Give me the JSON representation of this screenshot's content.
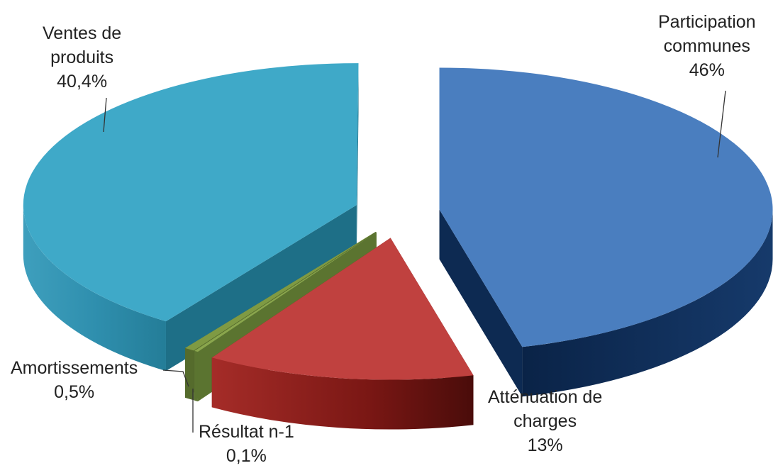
{
  "chart_data": {
    "type": "pie",
    "style": "3d-exploded",
    "slices": [
      {
        "name": "Participation communes",
        "value": 46,
        "label_lines": [
          "Participation",
          "communes",
          "46%"
        ],
        "color": "#4a7ebf",
        "side": "#0d2a52"
      },
      {
        "name": "Atténuation de charges",
        "value": 13,
        "label_lines": [
          "Atténuation de",
          "charges",
          "13%"
        ],
        "color": "#c0413f",
        "side": "#6f1714"
      },
      {
        "name": "Résultat n-1",
        "value": 0.1,
        "label_lines": [
          "Résultat n-1",
          "0,1%"
        ],
        "color": "#8aa64d",
        "side": "#5b7430"
      },
      {
        "name": "Amortissements",
        "value": 0.5,
        "label_lines": [
          "Amortissements",
          "0,5%"
        ],
        "color": "#7f9a43",
        "side": "#556b2c"
      },
      {
        "name": "Ventes de produits",
        "value": 40.4,
        "label_lines": [
          "Ventes de",
          "produits",
          "40,4%"
        ],
        "color": "#3fa9c8",
        "side": "#1e6f87"
      }
    ]
  }
}
